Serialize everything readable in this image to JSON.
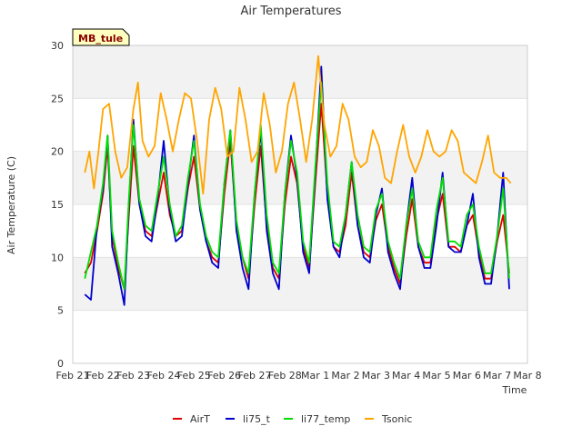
{
  "chart_data": {
    "type": "line",
    "title": "Air Temperatures",
    "xlabel": "Time",
    "ylabel": "Air Temperature (C)",
    "site_label": "MB_tule",
    "ylim": [
      0,
      30
    ],
    "yticks": [
      0,
      5,
      10,
      15,
      20,
      25,
      30
    ],
    "xlim": [
      0,
      15
    ],
    "xtick_labels": [
      "Feb 21",
      "Feb 22",
      "Feb 23",
      "Feb 24",
      "Feb 25",
      "Feb 26",
      "Feb 27",
      "Feb 28",
      "Mar 1",
      "Mar 2",
      "Mar 3",
      "Mar 4",
      "Mar 5",
      "Mar 6",
      "Mar 7",
      "Mar 8"
    ],
    "grid": "horizontal bands",
    "legend_position": "bottom",
    "series": [
      {
        "name": "AirT",
        "color": "#dd0000",
        "x": [
          0.4,
          0.6,
          0.8,
          1.0,
          1.15,
          1.3,
          1.5,
          1.7,
          1.85,
          2.0,
          2.2,
          2.4,
          2.6,
          2.8,
          3.0,
          3.2,
          3.4,
          3.6,
          3.8,
          4.0,
          4.2,
          4.4,
          4.6,
          4.8,
          5.0,
          5.2,
          5.4,
          5.6,
          5.8,
          6.0,
          6.2,
          6.4,
          6.6,
          6.8,
          7.0,
          7.2,
          7.4,
          7.6,
          7.8,
          8.0,
          8.2,
          8.4,
          8.6,
          8.8,
          9.0,
          9.2,
          9.4,
          9.6,
          9.8,
          10.0,
          10.2,
          10.4,
          10.6,
          10.8,
          11.0,
          11.2,
          11.4,
          11.6,
          11.8,
          12.0,
          12.2,
          12.4,
          12.6,
          12.8,
          13.0,
          13.2,
          13.4,
          13.6,
          13.8,
          14.0,
          14.2,
          14.4
        ],
        "y": [
          8.5,
          9.5,
          12.5,
          16.0,
          20.5,
          12.0,
          9.0,
          7.0,
          14.0,
          20.5,
          15.0,
          12.5,
          12.0,
          15.0,
          18.0,
          14.0,
          12.0,
          12.5,
          16.5,
          19.5,
          14.5,
          11.5,
          10.0,
          9.5,
          16.0,
          21.0,
          13.0,
          10.0,
          8.0,
          15.0,
          20.5,
          13.0,
          9.0,
          8.0,
          15.0,
          19.5,
          17.0,
          11.0,
          9.0,
          17.0,
          24.5,
          16.0,
          11.0,
          10.5,
          13.0,
          18.0,
          13.0,
          10.5,
          10.0,
          13.5,
          15.0,
          11.0,
          9.0,
          7.5,
          12.0,
          15.5,
          11.0,
          9.5,
          9.5,
          13.5,
          16.0,
          11.0,
          11.0,
          10.5,
          13.0,
          14.0,
          10.5,
          8.0,
          8.0,
          11.5,
          14.0,
          8.5
        ]
      },
      {
        "name": "li75_t",
        "color": "#0000cc",
        "x": [
          0.4,
          0.6,
          0.8,
          1.0,
          1.15,
          1.3,
          1.5,
          1.7,
          1.85,
          2.0,
          2.2,
          2.4,
          2.6,
          2.8,
          3.0,
          3.2,
          3.4,
          3.6,
          3.8,
          4.0,
          4.2,
          4.4,
          4.6,
          4.8,
          5.0,
          5.2,
          5.4,
          5.6,
          5.8,
          6.0,
          6.2,
          6.4,
          6.6,
          6.8,
          7.0,
          7.2,
          7.4,
          7.6,
          7.8,
          8.0,
          8.2,
          8.4,
          8.6,
          8.8,
          9.0,
          9.2,
          9.4,
          9.6,
          9.8,
          10.0,
          10.2,
          10.4,
          10.6,
          10.8,
          11.0,
          11.2,
          11.4,
          11.6,
          11.8,
          12.0,
          12.2,
          12.4,
          12.6,
          12.8,
          13.0,
          13.2,
          13.4,
          13.6,
          13.8,
          14.0,
          14.2,
          14.4
        ],
        "y": [
          6.5,
          6.0,
          13.0,
          16.5,
          21.5,
          11.0,
          8.5,
          5.5,
          15.0,
          23.0,
          15.0,
          12.0,
          11.5,
          15.5,
          21.0,
          14.5,
          11.5,
          12.0,
          17.0,
          21.5,
          14.5,
          11.5,
          9.5,
          9.0,
          17.0,
          22.0,
          12.5,
          9.0,
          7.0,
          16.0,
          22.0,
          12.5,
          8.5,
          7.0,
          16.0,
          21.5,
          17.5,
          10.5,
          8.5,
          18.0,
          28.0,
          15.5,
          11.0,
          10.0,
          14.0,
          19.0,
          13.0,
          10.0,
          9.5,
          14.0,
          16.5,
          10.5,
          8.5,
          7.0,
          13.0,
          17.5,
          11.0,
          9.0,
          9.0,
          13.0,
          18.0,
          11.0,
          10.5,
          10.5,
          13.0,
          16.0,
          10.0,
          7.5,
          7.5,
          12.0,
          18.0,
          7.0
        ]
      },
      {
        "name": "li77_temp",
        "color": "#00dd00",
        "x": [
          0.4,
          0.6,
          0.8,
          1.0,
          1.15,
          1.3,
          1.5,
          1.7,
          1.85,
          2.0,
          2.2,
          2.4,
          2.6,
          2.8,
          3.0,
          3.2,
          3.4,
          3.6,
          3.8,
          4.0,
          4.2,
          4.4,
          4.6,
          4.8,
          5.0,
          5.2,
          5.4,
          5.6,
          5.8,
          6.0,
          6.2,
          6.4,
          6.6,
          6.8,
          7.0,
          7.2,
          7.4,
          7.6,
          7.8,
          8.0,
          8.2,
          8.4,
          8.6,
          8.8,
          9.0,
          9.2,
          9.4,
          9.6,
          9.8,
          10.0,
          10.2,
          10.4,
          10.6,
          10.8,
          11.0,
          11.2,
          11.4,
          11.6,
          11.8,
          12.0,
          12.2,
          12.4,
          12.6,
          12.8,
          13.0,
          13.2,
          13.4,
          13.6,
          13.8,
          14.0,
          14.2,
          14.4
        ],
        "y": [
          8.0,
          10.5,
          13.0,
          17.0,
          21.5,
          12.5,
          9.5,
          7.0,
          15.5,
          22.5,
          15.5,
          13.0,
          12.5,
          16.0,
          19.5,
          15.0,
          12.0,
          13.0,
          17.5,
          21.0,
          15.0,
          12.0,
          10.5,
          10.0,
          17.0,
          22.0,
          13.5,
          10.0,
          8.5,
          16.0,
          22.5,
          14.0,
          9.5,
          8.5,
          16.0,
          21.0,
          18.0,
          11.5,
          9.5,
          18.5,
          26.5,
          17.0,
          11.5,
          11.0,
          14.0,
          19.0,
          14.0,
          11.0,
          10.5,
          14.5,
          16.0,
          11.5,
          9.5,
          8.0,
          13.0,
          16.5,
          11.5,
          10.0,
          10.0,
          14.5,
          17.5,
          11.5,
          11.5,
          11.0,
          14.0,
          15.0,
          11.0,
          8.5,
          8.5,
          12.0,
          16.5,
          8.0
        ]
      },
      {
        "name": "Tsonic",
        "color": "#ffa500",
        "x": [
          0.4,
          0.55,
          0.7,
          0.85,
          1.0,
          1.2,
          1.4,
          1.6,
          1.8,
          2.0,
          2.15,
          2.3,
          2.5,
          2.7,
          2.9,
          3.1,
          3.3,
          3.5,
          3.7,
          3.9,
          4.1,
          4.3,
          4.5,
          4.7,
          4.9,
          5.1,
          5.3,
          5.5,
          5.7,
          5.9,
          6.1,
          6.3,
          6.5,
          6.7,
          6.9,
          7.1,
          7.3,
          7.5,
          7.7,
          7.9,
          8.1,
          8.3,
          8.5,
          8.7,
          8.9,
          9.1,
          9.3,
          9.5,
          9.7,
          9.9,
          10.1,
          10.3,
          10.5,
          10.7,
          10.9,
          11.1,
          11.3,
          11.5,
          11.7,
          11.9,
          12.1,
          12.3,
          12.5,
          12.7,
          12.9,
          13.1,
          13.3,
          13.5,
          13.7,
          13.9,
          14.1,
          14.3,
          14.45
        ],
        "y": [
          18.0,
          20.0,
          16.5,
          20.0,
          24.0,
          24.5,
          20.0,
          17.5,
          18.5,
          24.0,
          26.5,
          21.0,
          19.5,
          20.5,
          25.5,
          23.0,
          20.0,
          23.0,
          25.5,
          25.0,
          21.0,
          16.0,
          23.0,
          26.0,
          24.0,
          19.5,
          20.0,
          26.0,
          23.0,
          19.0,
          20.0,
          25.5,
          22.5,
          18.0,
          20.0,
          24.5,
          26.5,
          23.0,
          19.0,
          23.0,
          29.0,
          22.5,
          19.5,
          20.5,
          24.5,
          23.0,
          19.5,
          18.5,
          19.0,
          22.0,
          20.5,
          17.5,
          17.0,
          20.0,
          22.5,
          19.5,
          18.0,
          19.5,
          22.0,
          20.0,
          19.5,
          20.0,
          22.0,
          21.0,
          18.0,
          17.5,
          17.0,
          19.0,
          21.5,
          18.0,
          17.5,
          17.5,
          17.0
        ]
      }
    ]
  }
}
